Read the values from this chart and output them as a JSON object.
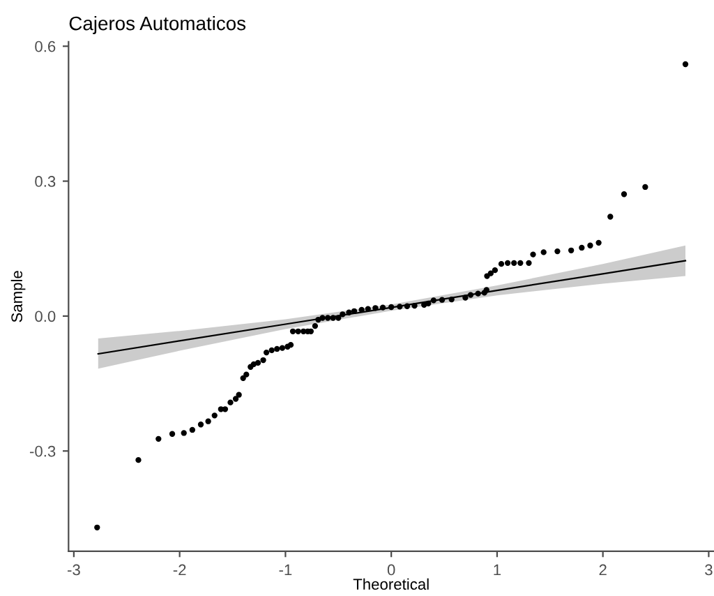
{
  "chart_data": {
    "type": "scatter",
    "title": "Cajeros Automaticos",
    "xlabel": "Theoretical",
    "ylabel": "Sample",
    "xlim": [
      -3.05,
      3.05
    ],
    "ylim": [
      -0.523,
      0.61
    ],
    "xticks": [
      -3,
      -2,
      -1,
      0,
      1,
      2,
      3
    ],
    "yticks": [
      {
        "value": -0.3,
        "label": "-0.3"
      },
      {
        "value": 0.0,
        "label": "0.0"
      },
      {
        "value": 0.3,
        "label": "0.3"
      },
      {
        "value": 0.6,
        "label": "0.6"
      }
    ],
    "grid": false,
    "legend": false,
    "series": [
      {
        "type": "line",
        "color": "#000000",
        "marker": "none",
        "x": [
          -2.77,
          -2,
          -1,
          0,
          1,
          2,
          2.78
        ],
        "values": [
          -0.084,
          -0.055,
          -0.018,
          0.019,
          0.057,
          0.094,
          0.123
        ],
        "lower": [
          -0.117,
          -0.077,
          -0.029,
          0.012,
          0.046,
          0.072,
          0.089
        ],
        "upper": [
          -0.05,
          -0.033,
          -0.007,
          0.026,
          0.068,
          0.116,
          0.157
        ]
      },
      {
        "color": "#000000",
        "marker": "circle",
        "x": [
          -2.78,
          -2.39,
          -2.2,
          -2.07,
          -1.96,
          -1.88,
          -1.8,
          -1.73,
          -1.67,
          -1.61,
          -1.57,
          -1.52,
          -1.47,
          -1.44,
          -1.4,
          -1.37,
          -1.33,
          -1.3,
          -1.26,
          -1.21,
          -1.18,
          -1.13,
          -1.08,
          -1.03,
          -0.98,
          -0.95,
          -0.93,
          -0.88,
          -0.83,
          -0.79,
          -0.76,
          -0.72,
          -0.69,
          -0.65,
          -0.6,
          -0.55,
          -0.5,
          -0.46,
          -0.4,
          -0.35,
          -0.28,
          -0.22,
          -0.15,
          -0.08,
          0.0,
          0.08,
          0.15,
          0.22,
          0.31,
          0.35,
          0.4,
          0.48,
          0.57,
          0.7,
          0.75,
          0.82,
          0.88,
          0.9,
          0.905,
          0.94,
          0.98,
          1.04,
          1.1,
          1.16,
          1.22,
          1.3,
          1.34,
          1.44,
          1.57,
          1.7,
          1.8,
          1.88,
          1.96,
          2.07,
          2.2,
          2.4,
          2.78
        ],
        "values": [
          -0.47,
          -0.32,
          -0.273,
          -0.262,
          -0.26,
          -0.253,
          -0.241,
          -0.234,
          -0.221,
          -0.207,
          -0.207,
          -0.192,
          -0.184,
          -0.175,
          -0.138,
          -0.13,
          -0.113,
          -0.107,
          -0.104,
          -0.098,
          -0.081,
          -0.076,
          -0.073,
          -0.071,
          -0.068,
          -0.064,
          -0.034,
          -0.034,
          -0.034,
          -0.034,
          -0.034,
          -0.022,
          -0.008,
          -0.004,
          -0.004,
          -0.004,
          -0.004,
          0.004,
          0.008,
          0.011,
          0.014,
          0.016,
          0.018,
          0.019,
          0.02,
          0.021,
          0.022,
          0.023,
          0.025,
          0.028,
          0.035,
          0.036,
          0.037,
          0.041,
          0.047,
          0.05,
          0.052,
          0.058,
          0.089,
          0.095,
          0.102,
          0.116,
          0.118,
          0.118,
          0.118,
          0.118,
          0.137,
          0.142,
          0.144,
          0.146,
          0.152,
          0.157,
          0.163,
          0.221,
          0.271,
          0.287,
          0.56
        ]
      }
    ]
  }
}
